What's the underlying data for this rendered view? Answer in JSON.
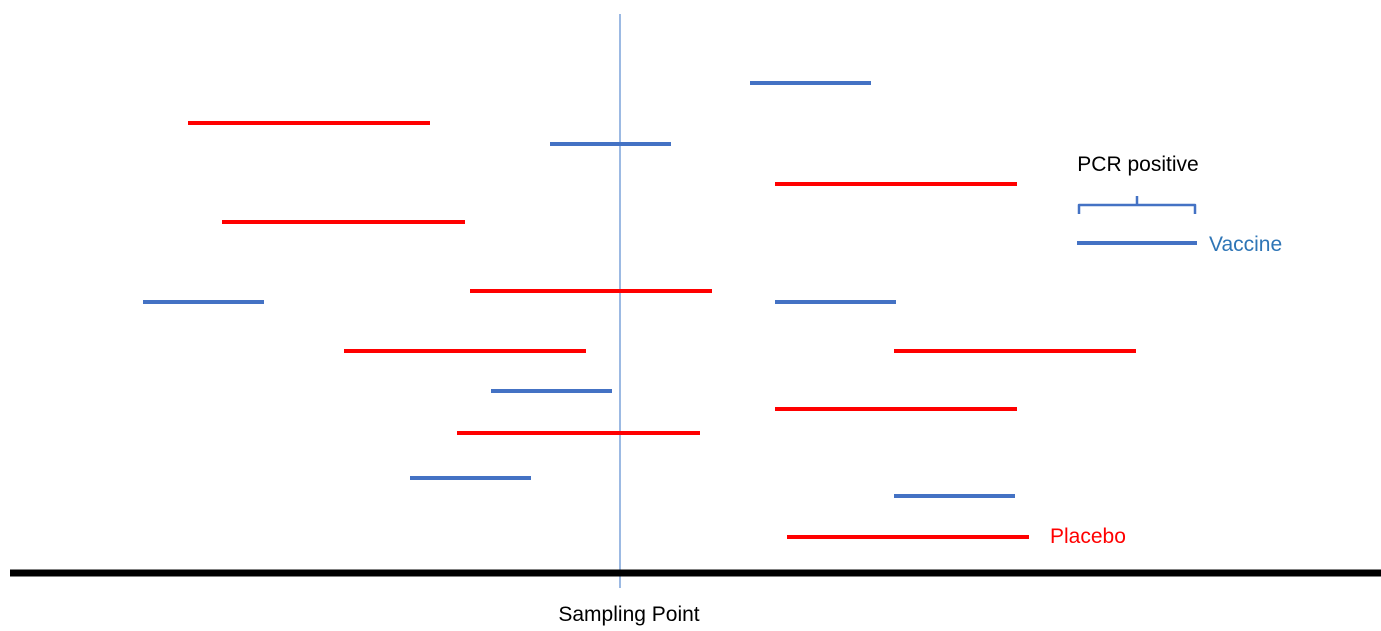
{
  "colors": {
    "vaccine": "#4472C4",
    "placebo": "#FF0000",
    "vaccine_label": "#2E75B6",
    "axis": "#000000",
    "sampling_line": "#5B8BD0",
    "text": "#000000"
  },
  "labels": {
    "pcr_positive": "PCR positive",
    "vaccine": "Vaccine",
    "placebo": "Placebo",
    "sampling_point": "Sampling Point"
  },
  "intervals": [
    {
      "group": "vaccine"
    },
    {
      "group": "placebo"
    },
    {
      "group": "vaccine"
    },
    {
      "group": "placebo"
    },
    {
      "group": "placebo"
    },
    {
      "group": "vaccine"
    },
    {
      "group": "placebo"
    },
    {
      "group": "vaccine"
    },
    {
      "group": "placebo"
    },
    {
      "group": "placebo"
    },
    {
      "group": "vaccine"
    },
    {
      "group": "placebo"
    },
    {
      "group": "placebo"
    },
    {
      "group": "vaccine"
    },
    {
      "group": "vaccine"
    },
    {
      "group": "placebo"
    }
  ]
}
